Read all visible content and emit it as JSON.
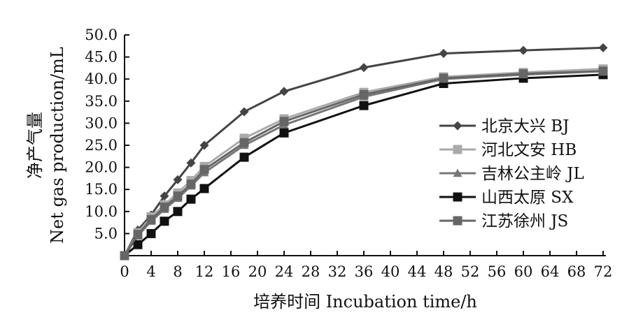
{
  "chart_data": {
    "type": "line",
    "xlabel": "培养时间  Incubation time/h",
    "ylabel_cn": "净产气量",
    "ylabel_en": "Net gas production/mL",
    "xlim": [
      0,
      72
    ],
    "ylim": [
      0,
      50
    ],
    "x_ticks": [
      "0",
      "4",
      "8",
      "12",
      "16",
      "20",
      "24",
      "28",
      "32",
      "36",
      "40",
      "44",
      "48",
      "52",
      "56",
      "60",
      "64",
      "68",
      "72"
    ],
    "y_ticks": [
      "5.0",
      "10.0",
      "15.0",
      "20.0",
      "25.0",
      "30.0",
      "35.0",
      "40.0",
      "45.0",
      "50.0"
    ],
    "grid": false,
    "legend_position": "center-right",
    "x": [
      0,
      2,
      4,
      6,
      8,
      10,
      12,
      18,
      24,
      36,
      48,
      60,
      72
    ],
    "series": [
      {
        "name": "北京大兴  BJ",
        "marker": "diamond",
        "color": "#444444",
        "values": [
          0,
          5.8,
          9.2,
          13.5,
          17.2,
          21.0,
          25.0,
          32.6,
          37.2,
          42.6,
          45.8,
          46.5,
          47.1
        ]
      },
      {
        "name": "河北文安  HB",
        "marker": "square",
        "color": "#aaaaaa",
        "values": [
          0,
          5.2,
          8.8,
          11.5,
          14.2,
          17.0,
          20.2,
          26.6,
          31.0,
          37.0,
          40.5,
          41.5,
          42.3
        ]
      },
      {
        "name": "吉林公主岭  JL",
        "marker": "triangle",
        "color": "#777777",
        "values": [
          0,
          4.5,
          7.8,
          10.5,
          13.0,
          15.8,
          18.8,
          25.0,
          29.6,
          36.0,
          40.0,
          41.0,
          41.8
        ]
      },
      {
        "name": "山西太原  SX",
        "marker": "square",
        "color": "#111111",
        "values": [
          0,
          2.5,
          5.0,
          7.8,
          10.0,
          12.8,
          15.2,
          22.3,
          27.8,
          34.0,
          39.0,
          40.2,
          41.0
        ]
      },
      {
        "name": "江苏徐州 JS",
        "marker": "square",
        "color": "#666666",
        "values": [
          0,
          4.8,
          8.2,
          11.0,
          13.5,
          16.2,
          19.5,
          25.6,
          30.4,
          36.5,
          40.2,
          41.2,
          41.8
        ]
      }
    ]
  }
}
